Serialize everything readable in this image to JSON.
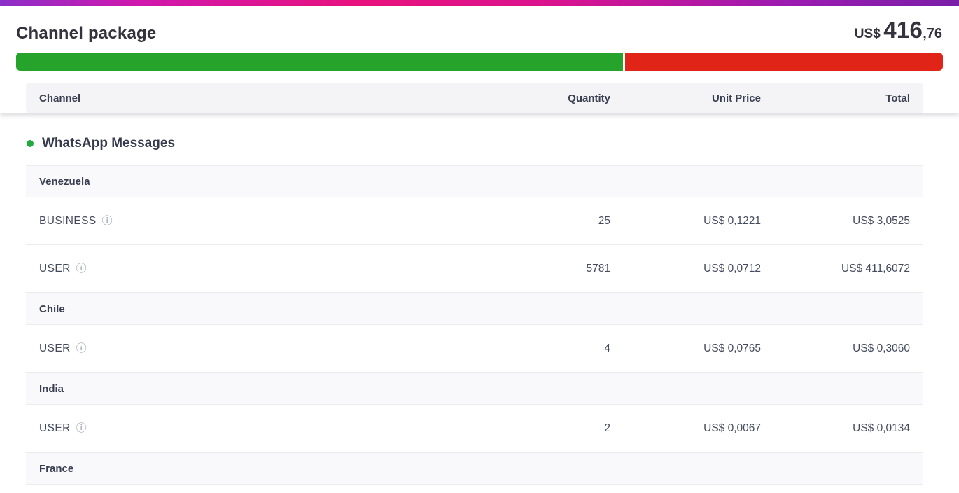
{
  "header": {
    "title": "Channel package",
    "total_currency": "US$",
    "total_main": "416",
    "total_decimal": ",76"
  },
  "progress": {
    "used_pct": 65.7,
    "used_color": "#26a32b",
    "over_color": "#e02417"
  },
  "icons": {
    "info": "ⓘ"
  },
  "section": {
    "label": "WhatsApp Messages",
    "dot_color": "#22a93f"
  },
  "table": {
    "columns": {
      "channel": "Channel",
      "quantity": "Quantity",
      "unit_price": "Unit Price",
      "total": "Total"
    },
    "groups": [
      {
        "country": "Venezuela",
        "rows": [
          {
            "channel": "BUSINESS",
            "quantity": "25",
            "unit_price": "US$ 0,1221",
            "total": "US$ 3,0525"
          },
          {
            "channel": "USER",
            "quantity": "5781",
            "unit_price": "US$ 0,0712",
            "total": "US$ 411,6072"
          }
        ]
      },
      {
        "country": "Chile",
        "rows": [
          {
            "channel": "USER",
            "quantity": "4",
            "unit_price": "US$ 0,0765",
            "total": "US$ 0,3060"
          }
        ]
      },
      {
        "country": "India",
        "rows": [
          {
            "channel": "USER",
            "quantity": "2",
            "unit_price": "US$ 0,0067",
            "total": "US$ 0,0134"
          }
        ]
      },
      {
        "country": "France",
        "rows": []
      }
    ]
  }
}
